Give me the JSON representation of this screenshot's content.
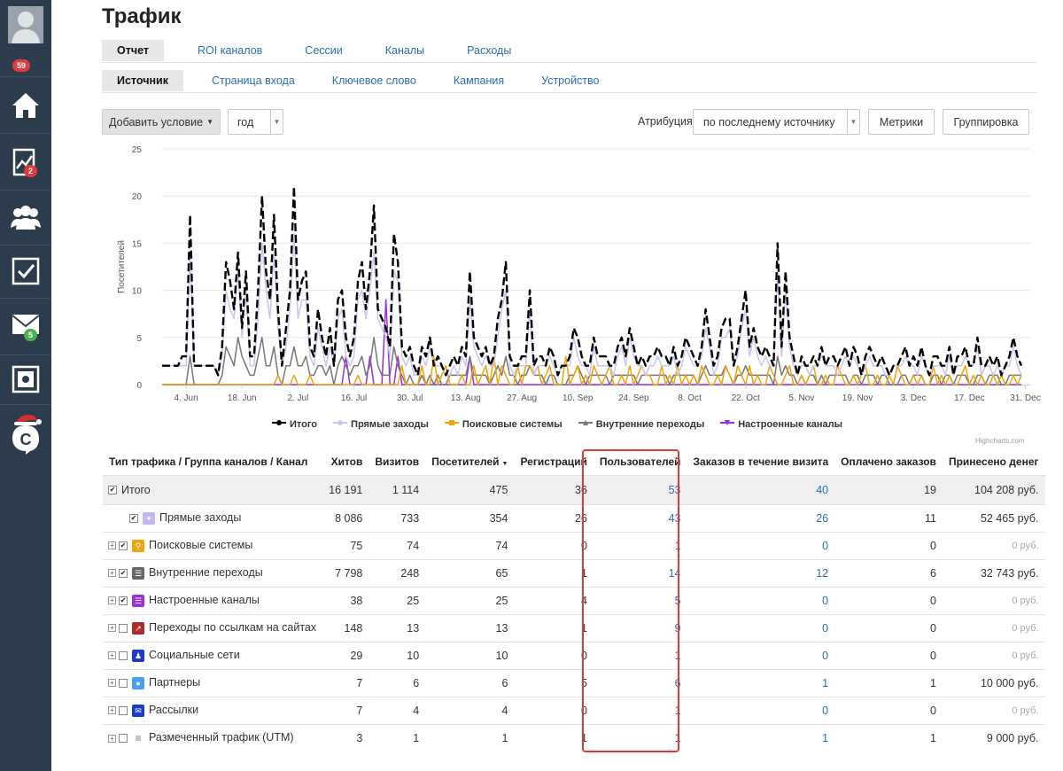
{
  "sidebar": {
    "notifications_badge": "59",
    "stats_badge": "2",
    "mail_badge": "5",
    "logo_letter": "C"
  },
  "page": {
    "title": "Трафик"
  },
  "tabs_primary": [
    {
      "label": "Отчет",
      "active": true
    },
    {
      "label": "ROI каналов",
      "active": false
    },
    {
      "label": "Сессии",
      "active": false
    },
    {
      "label": "Каналы",
      "active": false
    },
    {
      "label": "Расходы",
      "active": false
    }
  ],
  "tabs_secondary": [
    {
      "label": "Источник",
      "active": true
    },
    {
      "label": "Страница входа",
      "active": false
    },
    {
      "label": "Ключевое слово",
      "active": false
    },
    {
      "label": "Кампания",
      "active": false
    },
    {
      "label": "Устройство",
      "active": false
    }
  ],
  "toolbar": {
    "add_condition": "Добавить условие",
    "period": "год",
    "attribution_label": "Атрибуция",
    "attribution_value": "по последнему источнику",
    "metrics": "Метрики",
    "grouping": "Группировка"
  },
  "chart_data": {
    "type": "line",
    "ylabel": "Посетителей",
    "ylim": [
      0,
      25
    ],
    "yticks": [
      "0",
      "5",
      "10",
      "15",
      "20",
      "25"
    ],
    "x_tick_labels": [
      "4. Jun",
      "18. Jun",
      "2. Jul",
      "16. Jul",
      "30. Jul",
      "13. Aug",
      "27. Aug",
      "10. Sep",
      "24. Sep",
      "8. Oct",
      "22. Oct",
      "5. Nov",
      "19. Nov",
      "3. Dec",
      "17. Dec",
      "31. Dec"
    ],
    "x_start": "2017-05-29",
    "credits": "Highcharts.com",
    "series": [
      {
        "name": "Итого",
        "color": "#000000",
        "dash": true,
        "values": [
          2,
          2,
          2,
          2,
          2,
          3,
          3,
          18,
          2,
          2,
          2,
          2,
          2,
          2,
          1,
          4,
          13,
          11,
          8,
          14,
          6,
          12,
          3,
          3,
          10,
          20,
          12,
          9,
          18,
          8,
          2,
          6,
          10,
          21,
          9,
          11,
          12,
          4,
          3,
          8,
          5,
          3,
          6,
          2,
          9,
          10,
          5,
          3,
          5,
          11,
          13,
          8,
          12,
          19,
          8,
          7,
          6,
          4,
          16,
          13,
          4,
          3,
          4,
          2,
          1,
          4,
          3,
          5,
          2,
          3,
          2,
          1,
          2,
          3,
          2,
          4,
          3,
          12,
          5,
          4,
          3,
          4,
          2,
          3,
          7,
          9,
          13,
          3,
          2,
          2,
          3,
          3,
          10,
          2,
          3,
          3,
          2,
          4,
          3,
          1,
          2,
          2,
          3,
          6,
          5,
          3,
          2,
          2,
          5,
          3,
          3,
          3,
          2,
          2,
          4,
          5,
          3,
          6,
          4,
          2,
          3,
          2,
          3,
          3,
          4,
          3,
          3,
          2,
          4,
          2,
          3,
          5,
          4,
          3,
          2,
          4,
          8,
          5,
          2,
          3,
          6,
          7,
          7,
          2,
          4,
          7,
          10,
          4,
          6,
          4,
          3,
          4,
          3,
          2,
          15,
          4,
          12,
          5,
          3,
          1,
          3,
          2,
          2,
          3,
          2,
          4,
          2,
          3,
          3,
          2,
          3,
          4,
          2,
          4,
          3,
          1,
          3,
          4,
          3,
          2,
          3,
          2,
          1,
          2,
          2,
          3,
          4,
          2,
          3,
          2,
          4,
          2,
          1,
          3,
          3,
          2,
          2,
          4,
          1,
          3,
          3,
          4,
          2,
          2,
          5,
          2,
          2,
          3,
          2,
          3,
          1,
          2,
          3,
          5,
          3,
          2
        ]
      },
      {
        "name": "Прямые заходы",
        "color": "#c9c6f0",
        "dash": false,
        "values": [
          2,
          2,
          2,
          2,
          2,
          2,
          2,
          14,
          2,
          2,
          2,
          2,
          2,
          2,
          1,
          3,
          10,
          8,
          7,
          12,
          5,
          10,
          2,
          2,
          7,
          15,
          10,
          7,
          14,
          6,
          2,
          4,
          8,
          16,
          7,
          9,
          9,
          3,
          2,
          6,
          4,
          2,
          4,
          2,
          7,
          8,
          3,
          2,
          3,
          9,
          10,
          7,
          10,
          14,
          7,
          6,
          5,
          3,
          12,
          11,
          3,
          2,
          3,
          1,
          1,
          3,
          2,
          4,
          2,
          2,
          2,
          1,
          1,
          2,
          1,
          3,
          2,
          9,
          4,
          3,
          2,
          3,
          2,
          2,
          5,
          8,
          10,
          2,
          1,
          2,
          2,
          2,
          8,
          1,
          2,
          2,
          2,
          3,
          2,
          1,
          2,
          2,
          2,
          5,
          3,
          2,
          2,
          1,
          4,
          2,
          2,
          2,
          2,
          1,
          3,
          4,
          2,
          5,
          3,
          2,
          2,
          1,
          2,
          2,
          3,
          2,
          2,
          2,
          3,
          1,
          2,
          4,
          3,
          2,
          2,
          3,
          6,
          4,
          1,
          2,
          5,
          5,
          6,
          2,
          3,
          6,
          8,
          3,
          5,
          3,
          2,
          3,
          2,
          2,
          12,
          3,
          10,
          4,
          2,
          1,
          2,
          2,
          1,
          2,
          2,
          3,
          2,
          2,
          2,
          1,
          2,
          3,
          2,
          3,
          2,
          1,
          2,
          3,
          2,
          2,
          2,
          1,
          1,
          2,
          2,
          2,
          3,
          2,
          2,
          1,
          3,
          2,
          1,
          2,
          2,
          2,
          1,
          3,
          1,
          2,
          2,
          3,
          2,
          2,
          4,
          1,
          2,
          2,
          1,
          2,
          1,
          2,
          2,
          4,
          2,
          1
        ]
      },
      {
        "name": "Поисковые системы",
        "color": "#f0a30a",
        "dash": false,
        "values": [
          0,
          0,
          0,
          0,
          0,
          0,
          0,
          0,
          0,
          0,
          0,
          0,
          0,
          0,
          0,
          0,
          0,
          0,
          0,
          0,
          0,
          0,
          0,
          0,
          0,
          0,
          0,
          0,
          0,
          1,
          0,
          0,
          0,
          1,
          0,
          0,
          0,
          1,
          0,
          0,
          0,
          0,
          0,
          0,
          0,
          0,
          0,
          0,
          0,
          1,
          0,
          0,
          0,
          0,
          0,
          0,
          0,
          0,
          0,
          0,
          2,
          0,
          0,
          0,
          0,
          2,
          0,
          0,
          3,
          0,
          1,
          2,
          0,
          0,
          0,
          1,
          0,
          0,
          2,
          0,
          1,
          2,
          0,
          3,
          0,
          2,
          1,
          0,
          0,
          2,
          0,
          2,
          2,
          1,
          2,
          0,
          1,
          2,
          0,
          0,
          0,
          3,
          0,
          1,
          2,
          0,
          1,
          0,
          2,
          1,
          0,
          1,
          2,
          0,
          0,
          1,
          0,
          2,
          0,
          1,
          2,
          1,
          1,
          0,
          0,
          2,
          0,
          1,
          0,
          2,
          0,
          1,
          0,
          1,
          0,
          2,
          1,
          0,
          0,
          1,
          0,
          2,
          1,
          0,
          2,
          1,
          0,
          2,
          0,
          1,
          0,
          0,
          2,
          1,
          0,
          0,
          1,
          2,
          0,
          0,
          1,
          0,
          1,
          2,
          0,
          0,
          1,
          0,
          0,
          2,
          1,
          0,
          0,
          1,
          0,
          1,
          2,
          0,
          0,
          1,
          0,
          0,
          1,
          0,
          2,
          1,
          0,
          0,
          1,
          0,
          1,
          0,
          0,
          2,
          0,
          1,
          0,
          1,
          0,
          0,
          1,
          2,
          0,
          1,
          0,
          1,
          0,
          0,
          1,
          0,
          1,
          0,
          0,
          1,
          0,
          1
        ]
      },
      {
        "name": "Внутренние переходы",
        "color": "#777777",
        "dash": false,
        "values": [
          0,
          0,
          0,
          0,
          0,
          0,
          0,
          3,
          0,
          0,
          0,
          0,
          0,
          0,
          0,
          1,
          4,
          3,
          2,
          5,
          3,
          2,
          1,
          1,
          3,
          5,
          2,
          2,
          4,
          1,
          0,
          2,
          2,
          4,
          2,
          2,
          3,
          1,
          1,
          2,
          2,
          1,
          2,
          0,
          2,
          3,
          2,
          1,
          2,
          2,
          3,
          1,
          2,
          5,
          2,
          1,
          1,
          1,
          4,
          2,
          1,
          0,
          1,
          0,
          0,
          1,
          0,
          1,
          0,
          1,
          0,
          0,
          1,
          1,
          1,
          1,
          1,
          3,
          1,
          1,
          1,
          1,
          0,
          1,
          2,
          1,
          3,
          1,
          1,
          0,
          1,
          1,
          2,
          1,
          1,
          1,
          0,
          1,
          1,
          0,
          0,
          0,
          1,
          1,
          2,
          1,
          0,
          1,
          1,
          1,
          1,
          1,
          0,
          1,
          1,
          1,
          1,
          1,
          1,
          0,
          1,
          1,
          1,
          1,
          1,
          1,
          1,
          0,
          1,
          1,
          1,
          1,
          1,
          1,
          0,
          1,
          2,
          1,
          1,
          1,
          1,
          2,
          1,
          0,
          1,
          1,
          2,
          1,
          1,
          1,
          1,
          1,
          1,
          0,
          3,
          1,
          2,
          1,
          1,
          0,
          1,
          0,
          1,
          1,
          0,
          1,
          0,
          1,
          1,
          1,
          1,
          1,
          0,
          1,
          1,
          0,
          1,
          1,
          1,
          0,
          1,
          1,
          0,
          0,
          0,
          1,
          1,
          0,
          1,
          1,
          1,
          0,
          0,
          1,
          1,
          0,
          1,
          1,
          0,
          1,
          1,
          1,
          0,
          0,
          1,
          1,
          0,
          1,
          1,
          1,
          0,
          0,
          1,
          1,
          1,
          1
        ]
      },
      {
        "name": "Настроенные каналы",
        "color": "#9b30d9",
        "dash": false,
        "values": [
          0,
          0,
          0,
          0,
          0,
          0,
          0,
          0,
          0,
          0,
          0,
          0,
          0,
          0,
          0,
          0,
          0,
          0,
          0,
          0,
          0,
          0,
          0,
          0,
          0,
          0,
          0,
          0,
          0,
          0,
          0,
          0,
          0,
          0,
          0,
          0,
          0,
          0,
          0,
          0,
          0,
          0,
          0,
          0,
          0,
          0,
          3,
          0,
          0,
          0,
          0,
          0,
          3,
          0,
          0,
          0,
          9,
          0,
          0,
          3,
          0,
          0,
          0,
          0,
          0,
          0,
          0,
          0,
          0,
          0,
          0,
          0,
          0,
          0,
          0,
          0,
          0,
          3,
          0,
          0,
          0,
          0,
          0,
          0,
          0,
          0,
          0,
          0,
          0,
          0,
          0,
          0,
          0,
          0,
          0,
          0,
          0,
          0,
          0,
          0,
          0,
          0,
          0,
          0,
          0,
          0,
          0,
          0,
          0,
          0,
          0,
          0,
          0,
          0,
          0,
          0,
          0,
          0,
          0,
          0,
          0,
          0,
          0,
          0,
          0,
          0,
          0,
          0,
          0,
          0,
          0,
          0,
          0,
          0,
          0,
          0,
          0,
          0,
          0,
          0,
          0,
          0,
          0,
          0,
          0,
          0,
          0,
          0,
          0,
          0,
          0,
          0,
          0,
          0,
          0,
          0,
          0,
          0,
          0,
          0,
          0,
          0,
          0,
          0,
          0,
          0,
          0,
          0,
          0,
          0,
          0,
          0,
          0,
          0,
          0,
          0,
          0,
          0,
          0,
          0,
          0,
          0,
          0,
          0,
          0,
          0,
          0,
          0,
          0,
          0,
          0,
          0,
          0,
          0,
          0,
          0,
          0,
          0,
          0,
          0,
          0,
          0,
          0,
          0,
          0,
          0,
          0,
          0,
          0,
          0,
          0,
          0,
          0,
          0,
          0,
          0
        ]
      }
    ]
  },
  "table": {
    "headers": [
      "Тип трафика / Группа каналов / Канал",
      "Хитов",
      "Визитов",
      "Посетителей",
      "Регистраций",
      "Пользователей",
      "Заказов в течение визита",
      "Оплачено заказов",
      "Принесено денег"
    ],
    "rows": [
      {
        "name": "Итого",
        "icon": "none",
        "hits": "16 191",
        "visits": "1 114",
        "visitors": "475",
        "regs": "36",
        "users": "53",
        "orders": "40",
        "paid": "19",
        "money": "104 208 руб."
      },
      {
        "name": "Прямые заходы",
        "icon": "direct-icon",
        "color": "#c0b9ef",
        "hits": "8 086",
        "visits": "733",
        "visitors": "354",
        "regs": "26",
        "users": "43",
        "orders": "26",
        "paid": "11",
        "money": "52 465 руб."
      },
      {
        "name": "Поисковые системы",
        "icon": "search-icon",
        "color": "#f0a30a",
        "hits": "75",
        "visits": "74",
        "visitors": "74",
        "regs": "0",
        "users": "1",
        "orders": "0",
        "paid": "0",
        "money": "0 руб."
      },
      {
        "name": "Внутренние переходы",
        "icon": "internal-icon",
        "color": "#666666",
        "hits": "7 798",
        "visits": "248",
        "visitors": "65",
        "regs": "1",
        "users": "14",
        "orders": "12",
        "paid": "6",
        "money": "32 743 руб."
      },
      {
        "name": "Настроенные каналы",
        "icon": "custom-channels-icon",
        "color": "#9b30d9",
        "hits": "38",
        "visits": "25",
        "visitors": "25",
        "regs": "4",
        "users": "5",
        "orders": "0",
        "paid": "0",
        "money": "0 руб."
      },
      {
        "name": "Переходы по ссылкам на сайтах",
        "icon": "referral-icon",
        "color": "#b02a2a",
        "hits": "148",
        "visits": "13",
        "visitors": "13",
        "regs": "1",
        "users": "9",
        "orders": "0",
        "paid": "0",
        "money": "0 руб."
      },
      {
        "name": "Социальные сети",
        "icon": "social-icon",
        "color": "#1a3ccf",
        "hits": "29",
        "visits": "10",
        "visitors": "10",
        "regs": "0",
        "users": "1",
        "orders": "0",
        "paid": "0",
        "money": "0 руб."
      },
      {
        "name": "Партнеры",
        "icon": "partners-icon",
        "color": "#4a9df0",
        "hits": "7",
        "visits": "6",
        "visitors": "6",
        "regs": "5",
        "users": "6",
        "orders": "1",
        "paid": "1",
        "money": "10 000 руб."
      },
      {
        "name": "Рассылки",
        "icon": "mail-icon",
        "color": "#1a3ccf",
        "hits": "7",
        "visits": "4",
        "visitors": "4",
        "regs": "0",
        "users": "1",
        "orders": "0",
        "paid": "0",
        "money": "0 руб."
      },
      {
        "name": "Размеченный трафик (UTM)",
        "icon": "utm-icon",
        "color": "#777777",
        "hits": "3",
        "visits": "1",
        "visitors": "1",
        "regs": "1",
        "users": "1",
        "orders": "1",
        "paid": "1",
        "money": "9 000 руб."
      }
    ]
  }
}
